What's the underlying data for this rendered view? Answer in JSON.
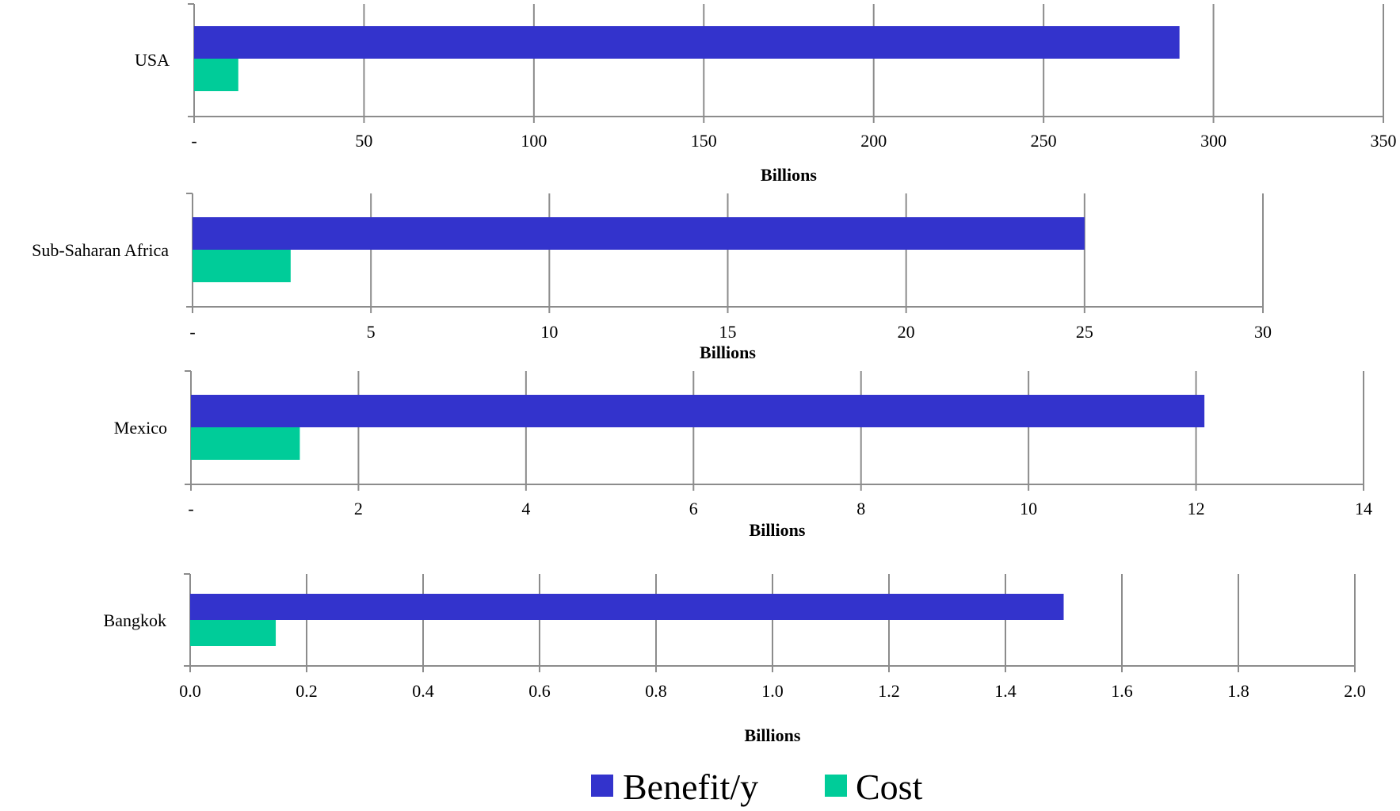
{
  "colors": {
    "benefit": "#3333cc",
    "cost": "#00cc99",
    "grid": "#8c8c8c"
  },
  "legend": [
    {
      "label": "Benefit/y",
      "color": "#3333cc"
    },
    {
      "label": "Cost",
      "color": "#00cc99"
    }
  ],
  "chart_data": [
    {
      "type": "bar",
      "orientation": "horizontal",
      "categories": [
        "USA"
      ],
      "series": [
        {
          "name": "Benefit/y",
          "values": [
            290
          ]
        },
        {
          "name": "Cost",
          "values": [
            13
          ]
        }
      ],
      "xlabel": "Billions",
      "xlim": [
        0,
        350
      ],
      "ticks": [
        0,
        50,
        100,
        150,
        200,
        250,
        300,
        350
      ],
      "tick_labels": [
        "-",
        "50",
        "100",
        "150",
        "200",
        "250",
        "300",
        "350"
      ],
      "grid": true
    },
    {
      "type": "bar",
      "orientation": "horizontal",
      "categories": [
        "Sub-Saharan Africa"
      ],
      "series": [
        {
          "name": "Benefit/y",
          "values": [
            25
          ]
        },
        {
          "name": "Cost",
          "values": [
            2.75
          ]
        }
      ],
      "xlabel": "Billions",
      "xlim": [
        0,
        30
      ],
      "ticks": [
        0,
        5,
        10,
        15,
        20,
        25,
        30
      ],
      "tick_labels": [
        "-",
        "5",
        "10",
        "15",
        "20",
        "25",
        "30"
      ],
      "grid": true
    },
    {
      "type": "bar",
      "orientation": "horizontal",
      "categories": [
        "Mexico"
      ],
      "series": [
        {
          "name": "Benefit/y",
          "values": [
            12.1
          ]
        },
        {
          "name": "Cost",
          "values": [
            1.3
          ]
        }
      ],
      "xlabel": "Billions",
      "xlim": [
        0,
        14
      ],
      "ticks": [
        0,
        2,
        4,
        6,
        8,
        10,
        12,
        14
      ],
      "tick_labels": [
        "-",
        "2",
        "4",
        "6",
        "8",
        "10",
        "12",
        "14"
      ],
      "grid": true
    },
    {
      "type": "bar",
      "orientation": "horizontal",
      "categories": [
        "Bangkok"
      ],
      "series": [
        {
          "name": "Benefit/y",
          "values": [
            1.5
          ]
        },
        {
          "name": "Cost",
          "values": [
            0.147
          ]
        }
      ],
      "xlabel": "Billions",
      "xlim": [
        0,
        2.0
      ],
      "ticks": [
        0,
        0.2,
        0.4,
        0.6,
        0.8,
        1.0,
        1.2,
        1.4,
        1.6,
        1.8,
        2.0
      ],
      "tick_labels": [
        "0.0",
        "0.2",
        "0.4",
        "0.6",
        "0.8",
        "1.0",
        "1.2",
        "1.4",
        "1.6",
        "1.8",
        "2.0"
      ],
      "grid": true
    }
  ]
}
